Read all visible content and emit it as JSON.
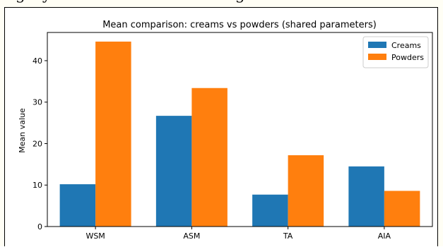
{
  "page": {
    "caption": "tegory... substitution screening"
  },
  "chart_data": {
    "type": "bar",
    "title": "Mean comparison: creams vs powders (shared parameters)",
    "xlabel": "",
    "ylabel": "Mean value",
    "categories": [
      "WSM",
      "ASM",
      "TA",
      "AIA"
    ],
    "series": [
      {
        "name": "Creams",
        "color": "#1f77b4",
        "values": [
          10.2,
          26.7,
          7.7,
          14.5
        ]
      },
      {
        "name": "Powders",
        "color": "#ff7f0e",
        "values": [
          44.6,
          33.4,
          17.2,
          8.6
        ]
      }
    ],
    "ylim": [
      0,
      46.8
    ],
    "yticks": [
      0,
      10,
      20,
      30,
      40
    ],
    "grid": false,
    "legend_position": "top-right"
  }
}
